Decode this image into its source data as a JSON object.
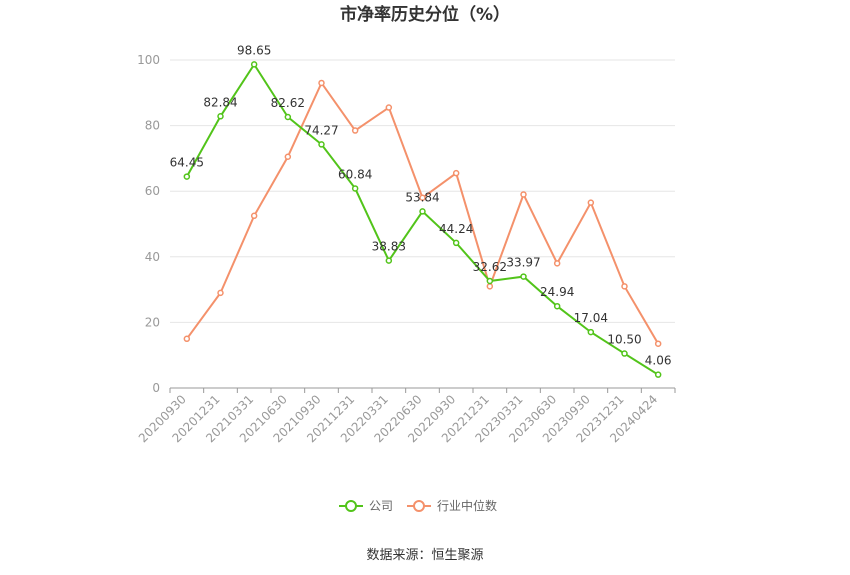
{
  "chart_data": {
    "type": "line",
    "title": "市净率历史分位（%）",
    "categories": [
      "20200930",
      "20201231",
      "20210331",
      "20210630",
      "20210930",
      "20211231",
      "20220331",
      "20220630",
      "20220930",
      "20221231",
      "20230331",
      "20230630",
      "20230930",
      "20231231",
      "20240424"
    ],
    "ylim": [
      0,
      100
    ],
    "yticks": [
      0,
      20,
      40,
      60,
      80,
      100
    ],
    "grid": true,
    "legend_position": "bottom",
    "series": [
      {
        "name": "公司",
        "color": "#52c41a",
        "values": [
          64.45,
          82.84,
          98.65,
          82.62,
          74.27,
          60.84,
          38.83,
          53.84,
          44.24,
          32.62,
          33.97,
          24.94,
          17.04,
          10.5,
          4.06
        ],
        "labels": [
          "64.45",
          "82.84",
          "98.65",
          "82.62",
          "74.27",
          "60.84",
          "38.83",
          "53.84",
          "44.24",
          "32.62",
          "33.97",
          "24.94",
          "17.04",
          "10.50",
          "4.06"
        ]
      },
      {
        "name": "行业中位数",
        "color": "#f4916b",
        "values": [
          15,
          29,
          52.5,
          70.5,
          93,
          78.5,
          85.5,
          58,
          65.5,
          31,
          59,
          38,
          56.5,
          31,
          13.5
        ]
      }
    ]
  },
  "source": "数据来源：恒生聚源"
}
